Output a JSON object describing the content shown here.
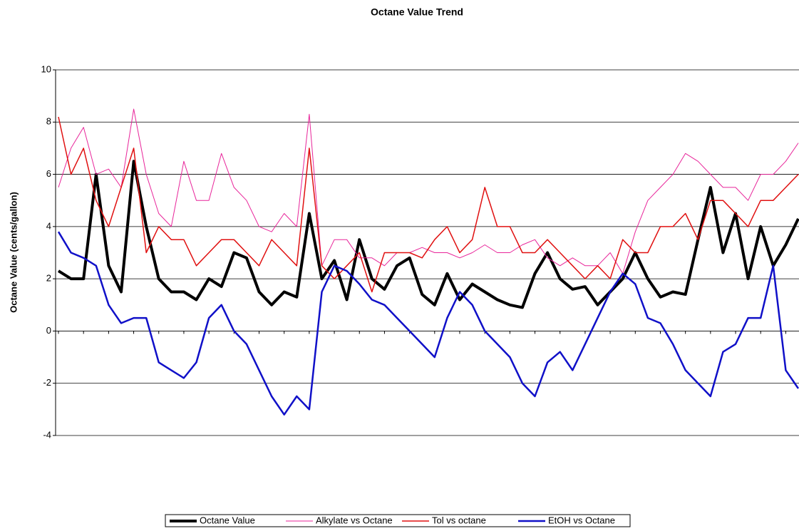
{
  "chart_data": {
    "type": "line",
    "title": "Octane Value Trend",
    "y_label": "Octane Value (cents/gallon)",
    "ylim": [
      -4,
      10
    ],
    "yticks": [
      10,
      8,
      6,
      4,
      2,
      0,
      -2,
      -4
    ],
    "grid": true,
    "legend": "bottom",
    "categories": [
      null,
      null,
      null,
      null,
      null,
      null,
      null,
      null,
      null,
      null,
      null,
      null,
      null,
      null,
      null,
      null,
      null,
      null,
      null,
      null,
      null,
      null,
      null,
      null,
      null,
      null,
      null,
      null,
      null,
      null,
      null,
      null,
      null,
      null,
      null,
      null,
      null,
      null,
      null,
      null,
      null,
      null,
      null,
      null,
      null,
      null,
      null,
      null,
      null,
      null,
      null,
      null,
      null,
      null,
      null,
      null,
      null,
      null,
      null,
      null
    ],
    "series": [
      {
        "name": "Octane Value",
        "color": "#000000",
        "width": 4,
        "values": [
          2.3,
          2.0,
          2.0,
          6.0,
          2.5,
          1.5,
          6.5,
          4.0,
          2.0,
          1.5,
          1.5,
          1.2,
          2.0,
          1.7,
          3.0,
          2.8,
          1.5,
          1.0,
          1.5,
          1.3,
          4.5,
          2.0,
          2.7,
          1.2,
          3.5,
          2.0,
          1.6,
          2.5,
          2.8,
          1.4,
          1.0,
          2.2,
          1.2,
          1.8,
          1.5,
          1.2,
          1.0,
          0.9,
          2.2,
          3.0,
          2.0,
          1.6,
          1.7,
          1.0,
          1.5,
          2.0,
          3.0,
          2.0,
          1.3,
          1.5,
          1.4,
          3.5,
          5.5,
          3.0,
          4.5,
          2.0,
          4.0,
          2.5,
          3.3,
          4.3
        ]
      },
      {
        "name": "Alkylate vs Octane",
        "color": "#e8259a",
        "width": 1,
        "values": [
          5.5,
          7.0,
          7.8,
          6.0,
          6.2,
          5.5,
          8.5,
          6.0,
          4.5,
          4.0,
          6.5,
          5.0,
          5.0,
          6.8,
          5.5,
          5.0,
          4.0,
          3.8,
          4.5,
          4.0,
          8.3,
          2.5,
          3.5,
          3.5,
          2.8,
          2.8,
          2.5,
          3.0,
          3.0,
          3.2,
          3.0,
          3.0,
          2.8,
          3.0,
          3.3,
          3.0,
          3.0,
          3.3,
          3.5,
          2.8,
          2.5,
          2.8,
          2.5,
          2.5,
          3.0,
          2.2,
          3.8,
          5.0,
          5.5,
          6.0,
          6.8,
          6.5,
          6.0,
          5.5,
          5.5,
          5.0,
          6.0,
          6.0,
          6.5,
          7.2
        ]
      },
      {
        "name": "Tol vs octane",
        "color": "#e01010",
        "width": 1.5,
        "values": [
          8.2,
          6.0,
          7.0,
          5.0,
          4.0,
          5.5,
          7.0,
          3.0,
          4.0,
          3.5,
          3.5,
          2.5,
          3.0,
          3.5,
          3.5,
          3.0,
          2.5,
          3.5,
          3.0,
          2.5,
          7.0,
          2.5,
          2.0,
          2.5,
          3.0,
          1.5,
          3.0,
          3.0,
          3.0,
          2.8,
          3.5,
          4.0,
          3.0,
          3.5,
          5.5,
          4.0,
          4.0,
          3.0,
          3.0,
          3.5,
          3.0,
          2.5,
          2.0,
          2.5,
          2.0,
          3.5,
          3.0,
          3.0,
          4.0,
          4.0,
          4.5,
          3.5,
          5.0,
          5.0,
          4.5,
          4.0,
          5.0,
          5.0,
          5.5,
          6.0
        ]
      },
      {
        "name": "EtOH vs Octane",
        "color": "#1010c8",
        "width": 2.5,
        "values": [
          3.8,
          3.0,
          2.8,
          2.5,
          1.0,
          0.3,
          0.5,
          0.5,
          -1.2,
          -1.5,
          -1.8,
          -1.2,
          0.5,
          1.0,
          0.0,
          -0.5,
          -1.5,
          -2.5,
          -3.2,
          -2.5,
          -3.0,
          1.5,
          2.5,
          2.3,
          1.8,
          1.2,
          1.0,
          0.5,
          0.0,
          -0.5,
          -1.0,
          0.5,
          1.5,
          1.0,
          0.0,
          -0.5,
          -1.0,
          -2.0,
          -2.5,
          -1.2,
          -0.8,
          -1.5,
          -0.5,
          0.5,
          1.5,
          2.2,
          1.8,
          0.5,
          0.3,
          -0.5,
          -1.5,
          -2.0,
          -2.5,
          -0.8,
          -0.5,
          0.5,
          0.5,
          2.5,
          -1.5,
          -2.2
        ]
      }
    ]
  }
}
